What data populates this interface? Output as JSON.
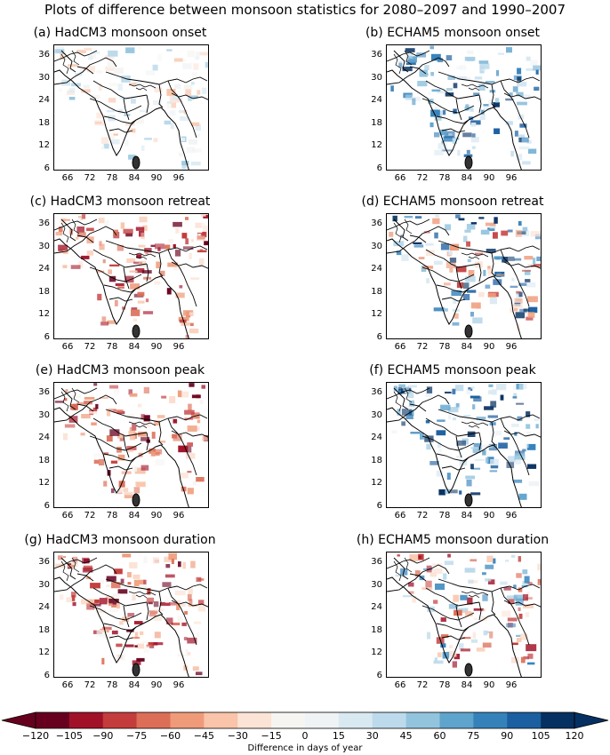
{
  "figure": {
    "title": "Plots of difference between monsoon statistics for 2080–2097 and 1990–2007"
  },
  "axes": {
    "y_ticks": [
      "36",
      "30",
      "24",
      "18",
      "12",
      "6"
    ],
    "x_ticks": [
      "66",
      "72",
      "78",
      "84",
      "90",
      "96"
    ]
  },
  "panels": [
    {
      "id": "a",
      "title": "(a)  HadCM3 monsoon onset",
      "model": "HadCM3",
      "statistic": "onset",
      "tint": "mixed-light",
      "seed": 11
    },
    {
      "id": "b",
      "title": "(b)  ECHAM5 monsoon onset",
      "model": "ECHAM5",
      "statistic": "onset",
      "tint": "blue",
      "seed": 23
    },
    {
      "id": "c",
      "title": "(c)  HadCM3 monsoon retreat",
      "model": "HadCM3",
      "statistic": "retreat",
      "tint": "red",
      "seed": 37
    },
    {
      "id": "d",
      "title": "(d)  ECHAM5 monsoon retreat",
      "model": "ECHAM5",
      "statistic": "retreat",
      "tint": "blue-red",
      "seed": 41
    },
    {
      "id": "e",
      "title": "(e)  HadCM3 monsoon peak",
      "model": "HadCM3",
      "statistic": "peak",
      "tint": "red",
      "seed": 53
    },
    {
      "id": "f",
      "title": "(f)  ECHAM5 monsoon peak",
      "model": "ECHAM5",
      "statistic": "peak",
      "tint": "blue",
      "seed": 67
    },
    {
      "id": "g",
      "title": "(g)  HadCM3 monsoon duration",
      "model": "HadCM3",
      "statistic": "duration",
      "tint": "red",
      "seed": 71
    },
    {
      "id": "h",
      "title": "(h)  ECHAM5 monsoon duration",
      "model": "ECHAM5",
      "statistic": "duration",
      "tint": "red-blue",
      "seed": 89
    }
  ],
  "colorbar": {
    "label": "Difference in days of year",
    "ticks": [
      "−120",
      "−105",
      "−90",
      "−75",
      "−60",
      "−45",
      "−30",
      "−15",
      "0",
      "15",
      "30",
      "45",
      "60",
      "75",
      "90",
      "105",
      "120"
    ],
    "colors": [
      "#67001f",
      "#a11228",
      "#c43c3c",
      "#dc6e57",
      "#ef9b7a",
      "#f9c4a9",
      "#fbe3d6",
      "#f7f5f2",
      "#f0f3f5",
      "#d9e9f2",
      "#bcdaeb",
      "#93c4de",
      "#5fa4cd",
      "#3582bb",
      "#1b5fa0",
      "#053061"
    ],
    "extend": "both"
  }
}
